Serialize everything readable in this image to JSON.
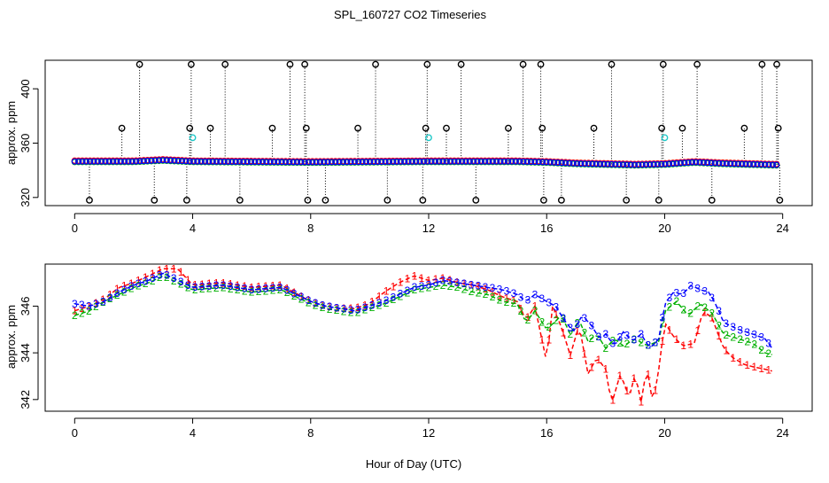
{
  "chart_data": {
    "title": "SPL_160727  CO2 Timeseries",
    "xlabel": "Hour of Day (UTC)",
    "panels": [
      {
        "type": "scatter",
        "ylabel": "approx. ppm",
        "xlim": [
          -1,
          25
        ],
        "ylim": [
          314,
          421
        ],
        "xticks": [
          0,
          4,
          8,
          12,
          16,
          20,
          24
        ],
        "yticks": [
          320,
          360,
          400
        ],
        "legend": "none",
        "baseline": [
          [
            0,
            346.5
          ],
          [
            2,
            346.5
          ],
          [
            3,
            347.5
          ],
          [
            4,
            346.5
          ],
          [
            8,
            346.0
          ],
          [
            12,
            346.5
          ],
          [
            15,
            346.5
          ],
          [
            16,
            346.0
          ],
          [
            17,
            345.0
          ],
          [
            18,
            344.5
          ],
          [
            19,
            344.0
          ],
          [
            20,
            344.5
          ],
          [
            21,
            346.0
          ],
          [
            22,
            345.0
          ],
          [
            23.7,
            344.0
          ]
        ],
        "spikes": [
          {
            "x": 0.5,
            "y": 318
          },
          {
            "x": 1.6,
            "y": 371
          },
          {
            "x": 2.2,
            "y": 418
          },
          {
            "x": 2.7,
            "y": 318
          },
          {
            "x": 3.8,
            "y": 318
          },
          {
            "x": 3.9,
            "y": 371
          },
          {
            "x": 3.95,
            "y": 418
          },
          {
            "x": 4.6,
            "y": 371
          },
          {
            "x": 5.1,
            "y": 418
          },
          {
            "x": 5.6,
            "y": 318
          },
          {
            "x": 6.7,
            "y": 371
          },
          {
            "x": 7.3,
            "y": 418
          },
          {
            "x": 7.8,
            "y": 418
          },
          {
            "x": 7.85,
            "y": 371
          },
          {
            "x": 7.9,
            "y": 318
          },
          {
            "x": 8.5,
            "y": 318
          },
          {
            "x": 9.6,
            "y": 371
          },
          {
            "x": 10.2,
            "y": 418
          },
          {
            "x": 10.6,
            "y": 318
          },
          {
            "x": 11.8,
            "y": 318
          },
          {
            "x": 11.9,
            "y": 371
          },
          {
            "x": 11.95,
            "y": 418
          },
          {
            "x": 12.6,
            "y": 371
          },
          {
            "x": 13.1,
            "y": 418
          },
          {
            "x": 13.6,
            "y": 318
          },
          {
            "x": 14.7,
            "y": 371
          },
          {
            "x": 15.2,
            "y": 418
          },
          {
            "x": 15.8,
            "y": 418
          },
          {
            "x": 15.85,
            "y": 371
          },
          {
            "x": 15.9,
            "y": 318
          },
          {
            "x": 16.5,
            "y": 318
          },
          {
            "x": 17.6,
            "y": 371
          },
          {
            "x": 18.2,
            "y": 418
          },
          {
            "x": 18.7,
            "y": 318
          },
          {
            "x": 19.8,
            "y": 318
          },
          {
            "x": 19.9,
            "y": 371
          },
          {
            "x": 19.95,
            "y": 418
          },
          {
            "x": 20.6,
            "y": 371
          },
          {
            "x": 21.1,
            "y": 418
          },
          {
            "x": 21.6,
            "y": 318
          },
          {
            "x": 22.7,
            "y": 371
          },
          {
            "x": 23.3,
            "y": 418
          },
          {
            "x": 23.8,
            "y": 418
          },
          {
            "x": 23.85,
            "y": 371
          },
          {
            "x": 23.9,
            "y": 318
          }
        ],
        "cyan_points": [
          {
            "x": 4.0,
            "y": 364
          },
          {
            "x": 12.0,
            "y": 364
          },
          {
            "x": 20.0,
            "y": 364
          }
        ]
      },
      {
        "type": "line",
        "ylabel": "approx. ppm",
        "xlim": [
          -1,
          25
        ],
        "ylim": [
          341.5,
          347.8
        ],
        "xticks": [
          0,
          4,
          8,
          12,
          16,
          20,
          24
        ],
        "yticks": [
          342,
          344,
          346
        ],
        "legend": "none",
        "series": [
          {
            "name": "1",
            "color": "#ff0000",
            "points": [
              [
                0,
                345.8
              ],
              [
                0.5,
                346.0
              ],
              [
                1,
                346.3
              ],
              [
                1.5,
                346.8
              ],
              [
                2,
                347.0
              ],
              [
                2.5,
                347.3
              ],
              [
                3,
                347.6
              ],
              [
                3.5,
                347.6
              ],
              [
                4,
                346.9
              ],
              [
                5,
                347.0
              ],
              [
                6,
                346.8
              ],
              [
                7,
                346.9
              ],
              [
                8,
                346.2
              ],
              [
                8.5,
                346.0
              ],
              [
                9,
                345.9
              ],
              [
                9.5,
                345.9
              ],
              [
                10,
                346.1
              ],
              [
                10.5,
                346.6
              ],
              [
                11,
                347.0
              ],
              [
                11.5,
                347.3
              ],
              [
                12,
                347.1
              ],
              [
                12.5,
                347.2
              ],
              [
                13,
                347.0
              ],
              [
                13.5,
                346.9
              ],
              [
                14,
                346.7
              ],
              [
                14.5,
                346.4
              ],
              [
                15,
                346.2
              ],
              [
                15.3,
                345.4
              ],
              [
                15.6,
                346.0
              ],
              [
                16,
                343.6
              ],
              [
                16.2,
                346.0
              ],
              [
                16.5,
                345.1
              ],
              [
                16.8,
                343.9
              ],
              [
                17.1,
                345.2
              ],
              [
                17.4,
                343.1
              ],
              [
                17.7,
                343.8
              ],
              [
                18,
                343.3
              ],
              [
                18.2,
                341.8
              ],
              [
                18.5,
                343.1
              ],
              [
                18.8,
                342.1
              ],
              [
                19,
                343.1
              ],
              [
                19.2,
                341.9
              ],
              [
                19.4,
                343.4
              ],
              [
                19.6,
                341.8
              ],
              [
                19.8,
                343.3
              ],
              [
                20,
                345.3
              ],
              [
                20.3,
                344.7
              ],
              [
                20.6,
                344.3
              ],
              [
                21,
                344.4
              ],
              [
                21.3,
                345.8
              ],
              [
                21.6,
                345.5
              ],
              [
                22,
                344.2
              ],
              [
                22.3,
                343.8
              ],
              [
                22.7,
                343.5
              ],
              [
                23,
                343.4
              ],
              [
                23.4,
                343.3
              ],
              [
                23.7,
                343.2
              ]
            ]
          },
          {
            "name": "2",
            "color": "#00b000",
            "points": [
              [
                0,
                345.6
              ],
              [
                0.5,
                345.8
              ],
              [
                1,
                346.2
              ],
              [
                1.5,
                346.5
              ],
              [
                2,
                346.8
              ],
              [
                2.5,
                347.0
              ],
              [
                3,
                347.3
              ],
              [
                3.5,
                347.0
              ],
              [
                4,
                346.7
              ],
              [
                5,
                346.8
              ],
              [
                6,
                346.6
              ],
              [
                7,
                346.7
              ],
              [
                8,
                346.1
              ],
              [
                8.5,
                345.9
              ],
              [
                9,
                345.8
              ],
              [
                9.5,
                345.7
              ],
              [
                10,
                345.9
              ],
              [
                10.5,
                346.1
              ],
              [
                11,
                346.4
              ],
              [
                11.5,
                346.7
              ],
              [
                12,
                346.8
              ],
              [
                12.5,
                346.9
              ],
              [
                13,
                346.8
              ],
              [
                13.5,
                346.6
              ],
              [
                14,
                346.5
              ],
              [
                14.5,
                346.2
              ],
              [
                15,
                346.1
              ],
              [
                15.3,
                345.3
              ],
              [
                15.6,
                345.8
              ],
              [
                16,
                345.0
              ],
              [
                16.5,
                345.6
              ],
              [
                16.8,
                344.8
              ],
              [
                17.1,
                345.4
              ],
              [
                17.4,
                344.5
              ],
              [
                17.7,
                344.8
              ],
              [
                18,
                344.2
              ],
              [
                18.3,
                344.6
              ],
              [
                18.6,
                344.3
              ],
              [
                19,
                344.6
              ],
              [
                19.4,
                344.3
              ],
              [
                19.8,
                344.5
              ],
              [
                20,
                345.8
              ],
              [
                20.4,
                346.2
              ],
              [
                20.8,
                345.6
              ],
              [
                21.2,
                346.1
              ],
              [
                21.6,
                345.7
              ],
              [
                22,
                344.8
              ],
              [
                22.5,
                344.6
              ],
              [
                23,
                344.4
              ],
              [
                23.4,
                344.0
              ],
              [
                23.7,
                343.9
              ]
            ]
          },
          {
            "name": "3",
            "color": "#0000ff",
            "points": [
              [
                0,
                346.1
              ],
              [
                0.5,
                346.0
              ],
              [
                1,
                346.2
              ],
              [
                1.5,
                346.6
              ],
              [
                2,
                346.9
              ],
              [
                2.5,
                347.1
              ],
              [
                3,
                347.4
              ],
              [
                3.5,
                347.1
              ],
              [
                4,
                346.8
              ],
              [
                5,
                346.9
              ],
              [
                6,
                346.7
              ],
              [
                7,
                346.8
              ],
              [
                8,
                346.2
              ],
              [
                8.5,
                346.0
              ],
              [
                9,
                345.9
              ],
              [
                9.5,
                345.8
              ],
              [
                10,
                346.0
              ],
              [
                10.5,
                346.2
              ],
              [
                11,
                346.5
              ],
              [
                11.5,
                346.8
              ],
              [
                12,
                346.9
              ],
              [
                12.5,
                347.1
              ],
              [
                13,
                347.0
              ],
              [
                13.5,
                346.9
              ],
              [
                14,
                346.8
              ],
              [
                14.5,
                346.7
              ],
              [
                15,
                346.5
              ],
              [
                15.3,
                346.2
              ],
              [
                15.6,
                346.5
              ],
              [
                16,
                346.2
              ],
              [
                16.3,
                346.0
              ],
              [
                16.6,
                345.4
              ],
              [
                16.9,
                344.9
              ],
              [
                17.2,
                345.6
              ],
              [
                17.5,
                345.2
              ],
              [
                17.8,
                344.6
              ],
              [
                18,
                344.8
              ],
              [
                18.3,
                344.3
              ],
              [
                18.6,
                344.9
              ],
              [
                18.9,
                344.5
              ],
              [
                19.2,
                344.8
              ],
              [
                19.5,
                344.2
              ],
              [
                19.8,
                344.6
              ],
              [
                20,
                346.1
              ],
              [
                20.3,
                346.6
              ],
              [
                20.6,
                346.5
              ],
              [
                20.9,
                346.9
              ],
              [
                21.2,
                346.7
              ],
              [
                21.5,
                346.6
              ],
              [
                21.8,
                345.9
              ],
              [
                22,
                345.3
              ],
              [
                22.5,
                345.0
              ],
              [
                23,
                344.8
              ],
              [
                23.4,
                344.6
              ],
              [
                23.7,
                344.1
              ]
            ]
          }
        ]
      }
    ],
    "x_tick_labels": [
      "0",
      "4",
      "8",
      "12",
      "16",
      "20",
      "24"
    ],
    "y_tick_labels_top": [
      "320",
      "360",
      "400"
    ],
    "y_tick_labels_bottom": [
      "342",
      "344",
      "346"
    ]
  }
}
